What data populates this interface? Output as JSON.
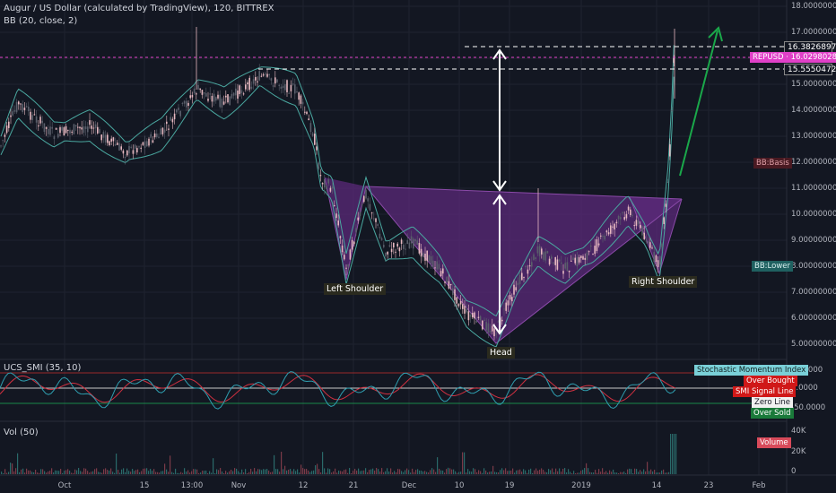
{
  "header": {
    "title": "Augur / US Dollar (calculated by TradingView), 120, BITTREX",
    "indicator": "BB (20, close, 2)"
  },
  "price_axis": {
    "ticks": [
      "18.00000000",
      "17.00000000",
      "16.00000000",
      "15.00000000",
      "14.00000000",
      "13.00000000",
      "12.00000000",
      "11.00000000",
      "10.00000000",
      "9.00000000",
      "8.00000000",
      "7.00000000",
      "6.00000000",
      "5.00000000"
    ],
    "tags": {
      "high": "16.38268976",
      "current": "REPUSD · 16.02980280",
      "level": "15.55504726",
      "basis": "BB:Basis",
      "lower": "BB:Lower"
    }
  },
  "pattern_labels": {
    "left_shoulder": "Left Shoulder",
    "head": "Head",
    "right_shoulder": "Right Shoulder"
  },
  "smi": {
    "title": "UCS_SMI (35, 10)",
    "ticks": [
      "50.0000",
      "0.0000",
      "-50.0000"
    ],
    "tags": {
      "name": "Stochastic Momentum Index",
      "over_bought": "Over Bought",
      "signal": "SMI Signal Line",
      "zero": "Zero Line",
      "over_sold": "Over Sold"
    }
  },
  "volume": {
    "title": "Vol (50)",
    "ticks": [
      "40K",
      "20K",
      "0"
    ],
    "tag": "Volume"
  },
  "time_axis": [
    "Oct",
    "15",
    "13:00",
    "Nov",
    "12",
    "21",
    "Dec",
    "10",
    "19",
    "2019",
    "14",
    "23",
    "Feb"
  ],
  "colors": {
    "background": "#131722",
    "up": "#e6b8c0",
    "down": "#3a3f4b",
    "bb_band": "#4aa8a0",
    "pattern_fill": "#5b2a7a",
    "resistance": "#e040c8",
    "arrow": "#1aa84a",
    "smi_main": "#2f9fb0",
    "smi_signal": "#d03040"
  }
}
